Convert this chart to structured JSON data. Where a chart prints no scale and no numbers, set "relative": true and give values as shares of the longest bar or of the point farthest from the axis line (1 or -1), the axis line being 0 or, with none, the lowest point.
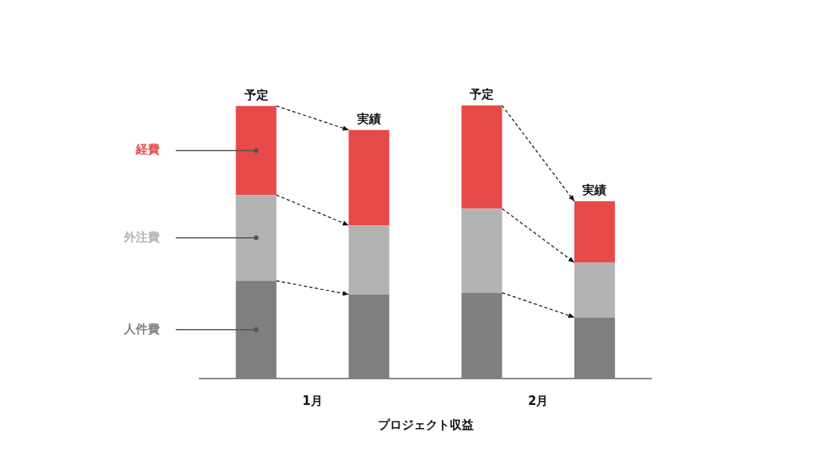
{
  "chart_data": {
    "type": "bar",
    "stacked": true,
    "relative": true,
    "categories": [
      "予定",
      "実績",
      "予定",
      "実績"
    ],
    "series": [
      {
        "name": "人件費",
        "color": "#7f7f7f",
        "values": [
          0.358,
          0.308,
          0.314,
          0.224
        ]
      },
      {
        "name": "外注費",
        "color": "#b3b3b3",
        "values": [
          0.314,
          0.253,
          0.308,
          0.201
        ]
      },
      {
        "name": "経費",
        "color": "#e84a4a",
        "values": [
          0.326,
          0.349,
          0.378,
          0.224
        ]
      }
    ],
    "xlabel": "プロジェクト収益",
    "annotations": [
      "1月",
      "2月"
    ],
    "legend": false,
    "grid": false
  }
}
